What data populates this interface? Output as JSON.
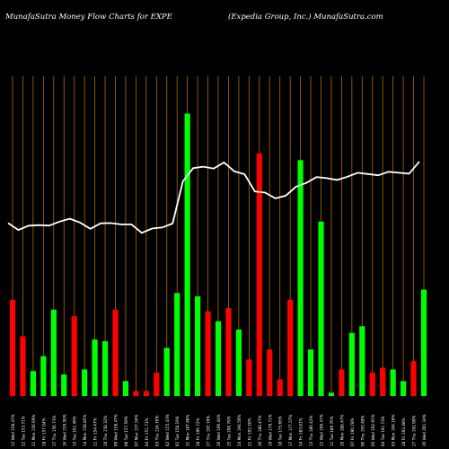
{
  "header": {
    "left_text": "MunafaSutra  Money Flow  Charts for EXPE",
    "right_text": "(Expedia  Group,  Inc.) MunafaSutra.com"
  },
  "colors": {
    "background": "#000000",
    "grid": "#b06a10",
    "up_bar": "#00ff00",
    "down_bar": "#ff0000",
    "price_line": "#ffffff",
    "text": "#ffffff"
  },
  "chart_data": {
    "type": "bar",
    "grid": true,
    "categories": [
      "12 Wed 158.47%",
      "22 Tue 153.71%",
      "21 Mon 156.69%",
      "18 Fri 157.04%",
      "17 Thu 156.73%",
      "16 Wed 159.50%",
      "15 Tue 161.49%",
      "14 Mon 158.85%",
      "11 Fri 154.47%",
      "10 Thu 158.32%",
      "09 Wed 158.47%",
      "08 Tue 157.59%",
      "07 Mon 157.56%",
      "04 Fri 151.71%",
      "03 Thu 154.70%",
      "02 Wed 155.43%",
      "01 Tue 158.19%",
      "31 Mon 187.48%",
      "28 Fri 196.72%",
      "27 Thu 197.78%",
      "26 Wed 196.44%",
      "25 Tue 200.70%",
      "24 Mon 194.50%",
      "21 Fri 192.50%",
      "20 Thu 180.47%",
      "19 Wed 179.71%",
      "18 Tue 175.66%",
      "17 Mon 177.57%",
      "14 Fri 183.81%",
      "13 Thu 186.42%",
      "12 Wed 190.47%",
      "11 Tue 189.76%",
      "10 Mon 188.47%",
      "07 Fri 190.78%",
      "06 Thu 193.48%",
      "05 Wed 192.65%",
      "04 Tue 191.73%",
      "03 Mon 194.18%",
      "28 Fri 193.48%",
      "27 Thu 192.90%",
      "26 Wed 201.34%"
    ],
    "bar_values": [
      29,
      18,
      7.5,
      12,
      26,
      6.5,
      24,
      8,
      17,
      16.5,
      26,
      4.5,
      1.5,
      1.5,
      7,
      14.5,
      31,
      85,
      30,
      25.5,
      22.5,
      26.5,
      20,
      11,
      73,
      14,
      5,
      29,
      71,
      14,
      52.5,
      1,
      8,
      19,
      21,
      7,
      8.5,
      8,
      4.5,
      10.5,
      32
    ],
    "bar_colors": [
      "red",
      "red",
      "green",
      "green",
      "green",
      "green",
      "red",
      "green",
      "green",
      "green",
      "red",
      "green",
      "red",
      "red",
      "red",
      "green",
      "green",
      "green",
      "green",
      "red",
      "green",
      "red",
      "green",
      "red",
      "red",
      "red",
      "red",
      "red",
      "green",
      "green",
      "green",
      "green",
      "red",
      "green",
      "green",
      "red",
      "red",
      "green",
      "green",
      "red",
      "green"
    ],
    "price": [
      158.47,
      153.71,
      156.69,
      157.04,
      156.73,
      159.5,
      161.49,
      158.85,
      154.47,
      158.32,
      158.47,
      157.59,
      157.56,
      151.71,
      154.7,
      155.43,
      158.19,
      187.48,
      196.72,
      197.78,
      196.44,
      200.7,
      194.5,
      192.5,
      180.47,
      179.71,
      175.66,
      177.57,
      183.81,
      186.42,
      190.47,
      189.76,
      188.47,
      190.78,
      193.48,
      192.65,
      191.73,
      194.18,
      193.48,
      192.9,
      201.34
    ]
  }
}
